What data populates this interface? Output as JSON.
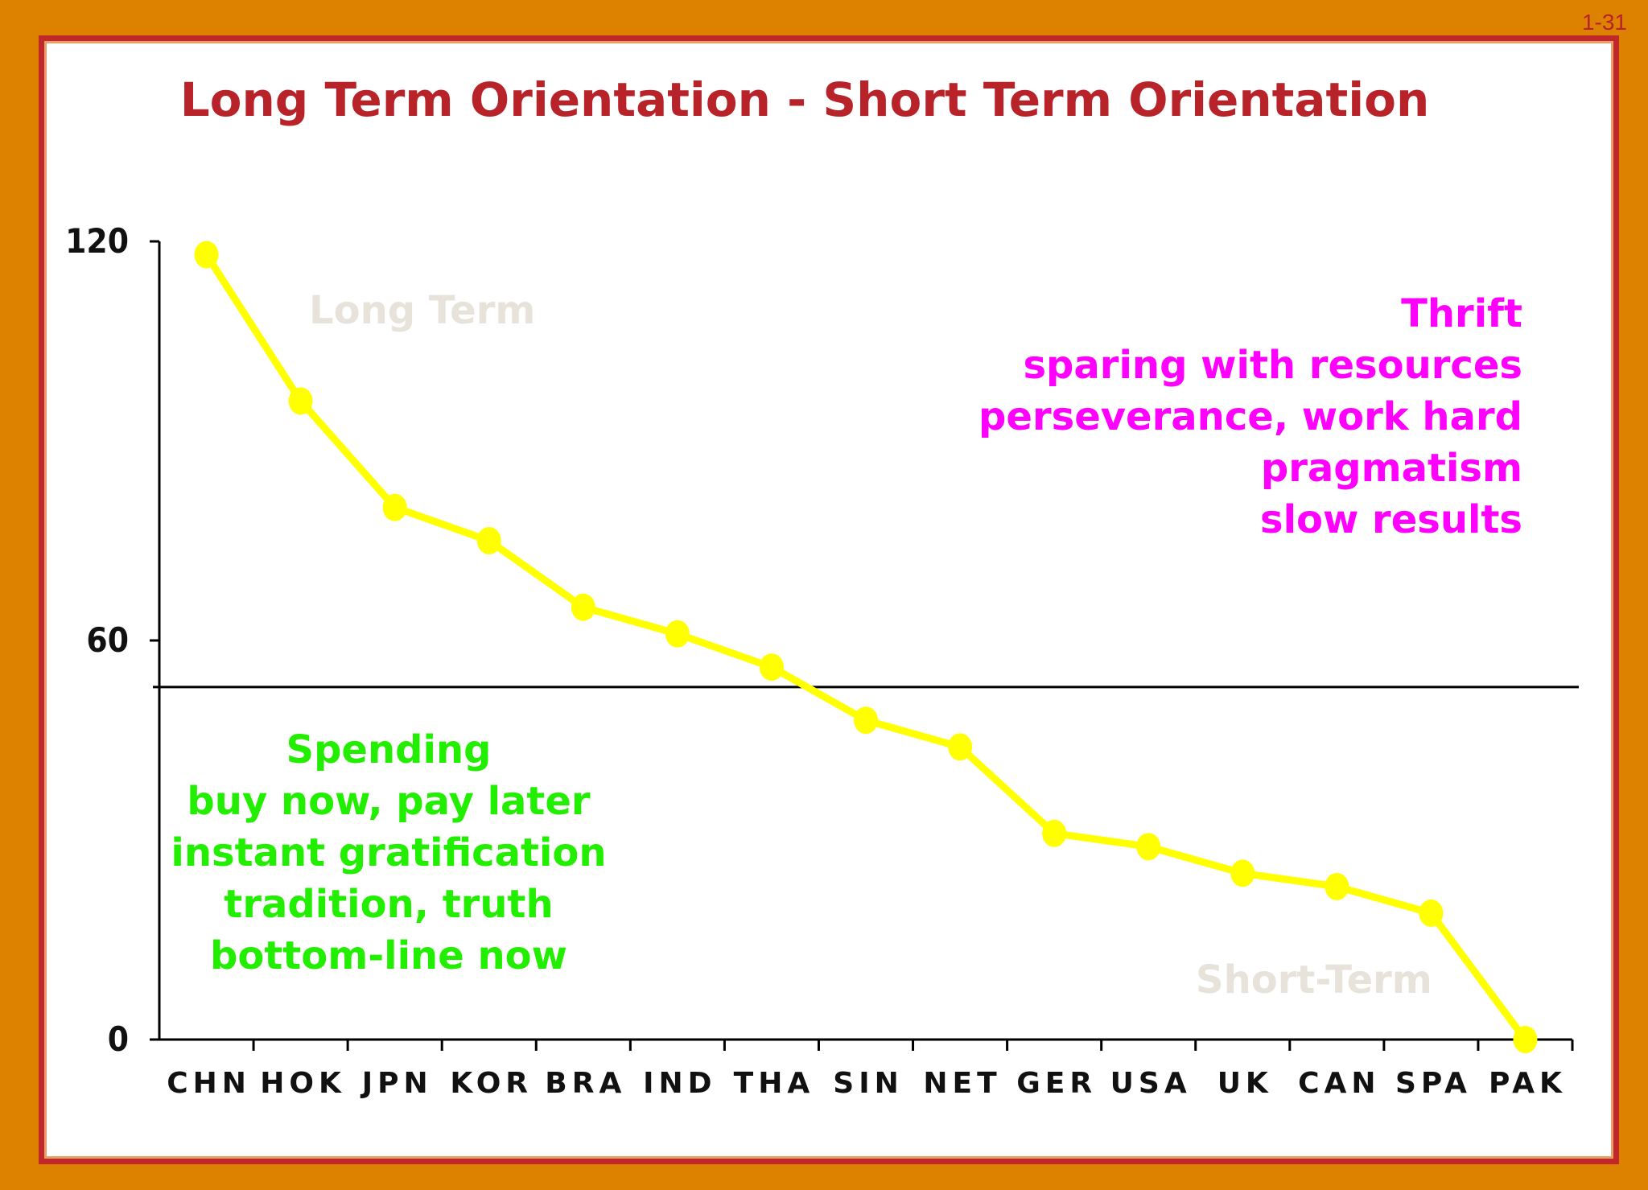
{
  "slide_number": "1-31",
  "chart_data": {
    "type": "line",
    "title": "Long Term Orientation - Short Term Orientation",
    "categories": [
      "CHN",
      "HOK",
      "JPN",
      "KOR",
      "BRA",
      "IND",
      "THA",
      "SIN",
      "NET",
      "GER",
      "USA",
      "UK",
      "CAN",
      "SPA",
      "PAK"
    ],
    "series": [
      {
        "values": [
          118,
          96,
          80,
          75,
          65,
          61,
          56,
          48,
          44,
          31,
          29,
          25,
          23,
          19,
          0
        ]
      }
    ],
    "ylim": [
      0,
      120
    ],
    "yticks": [
      "120",
      "60",
      "0"
    ],
    "reference_line": 53,
    "grid": false,
    "colors": {
      "line": "#ffff00",
      "reference": "#000000",
      "axis": "#000000"
    },
    "annotations": {
      "long_term": "Long Term",
      "short_term": "Short-Term",
      "thrift": [
        "Thrift",
        "sparing with resources",
        "perseverance, work hard",
        "pragmatism",
        "slow results"
      ],
      "spending": [
        "Spending",
        "buy now, pay later",
        "instant gratification",
        "tradition, truth",
        "bottom-line now"
      ]
    }
  }
}
